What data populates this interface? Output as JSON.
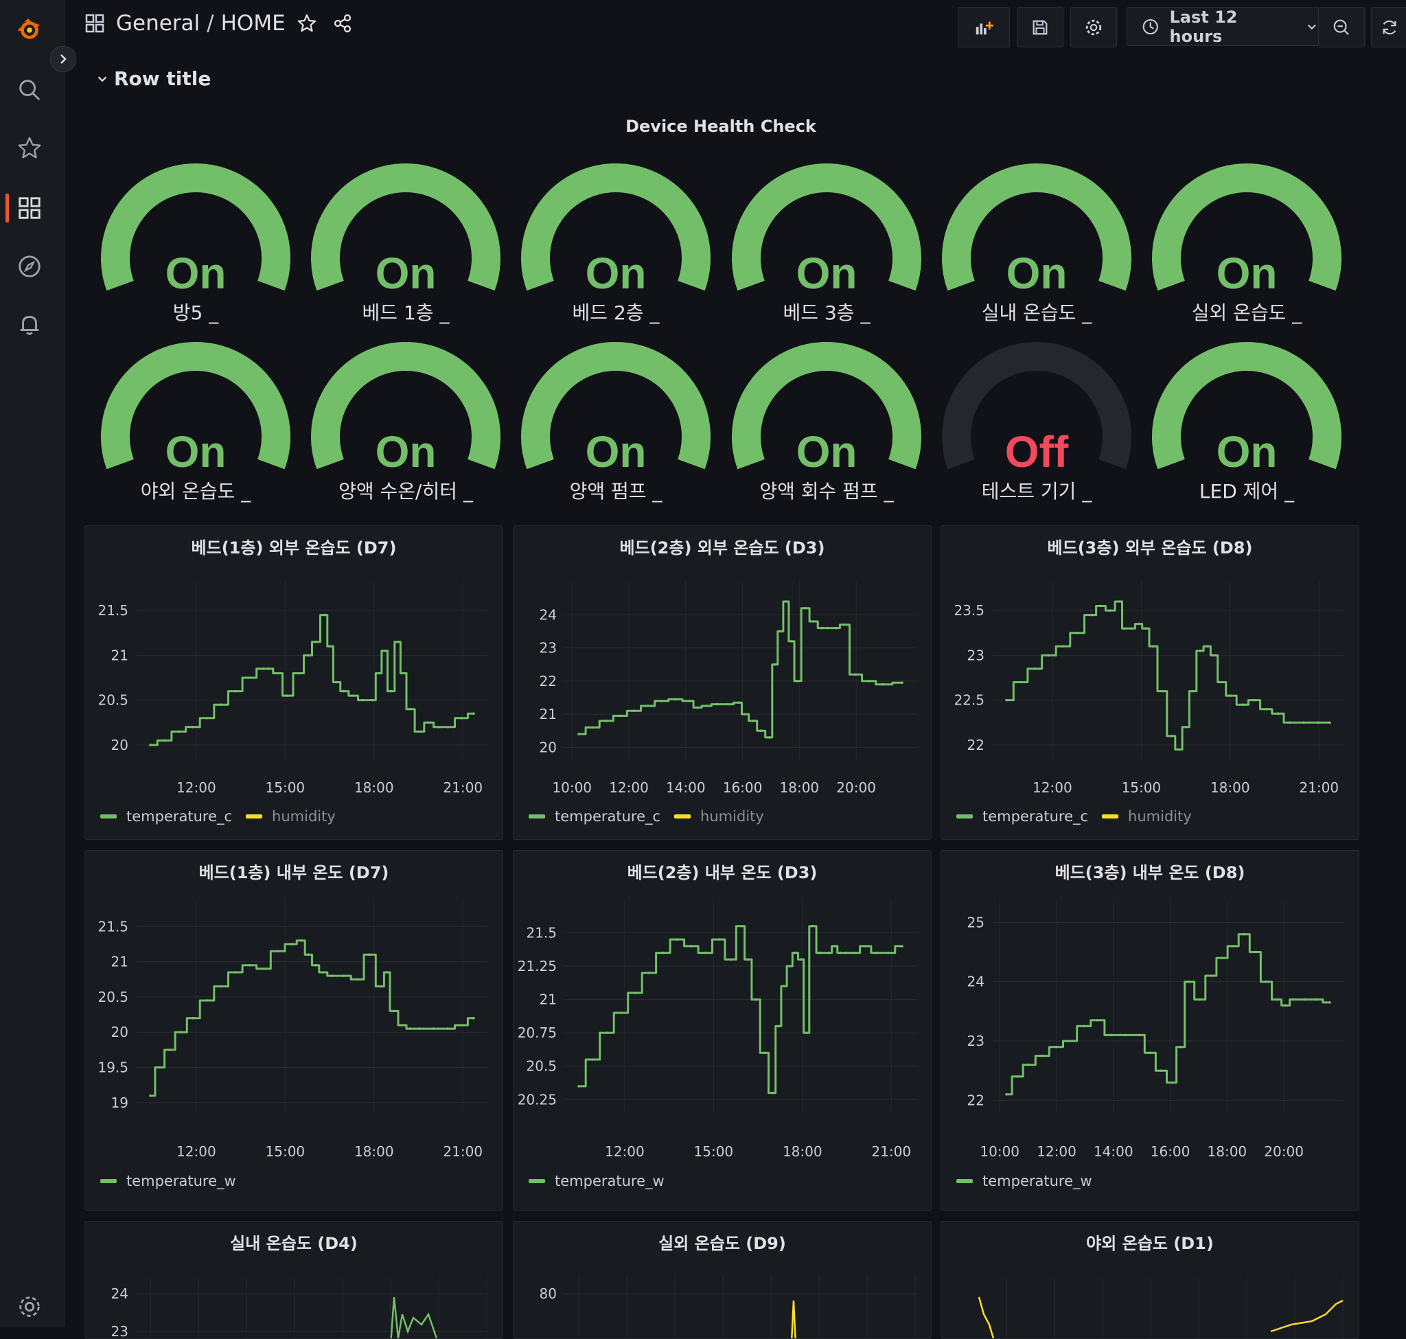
{
  "breadcrumb": {
    "folder": "General",
    "dashboard": "HOME"
  },
  "toolbar": {
    "time_range": "Last 12 hours"
  },
  "icons": [
    "grafana-logo-icon",
    "search-icon",
    "star-icon",
    "dashboards-icon",
    "explore-icon",
    "alerting-icon",
    "settings-icon",
    "chevron-right-icon",
    "dashboard-grid-icon",
    "star-outline-icon",
    "share-icon",
    "add-panel-icon",
    "save-icon",
    "gear-icon",
    "clock-icon",
    "chevron-down-icon",
    "zoom-out-icon",
    "refresh-icon"
  ],
  "row": {
    "title": "Row title"
  },
  "health": {
    "title": "Device Health Check",
    "devices": [
      {
        "label": "방5 _",
        "value": "On"
      },
      {
        "label": "베드 1층 _",
        "value": "On"
      },
      {
        "label": "베드 2층 _",
        "value": "On"
      },
      {
        "label": "베드 3층 _",
        "value": "On"
      },
      {
        "label": "실내 온습도 _",
        "value": "On"
      },
      {
        "label": "실외 온습도 _",
        "value": "On"
      },
      {
        "label": "야외 온습도 _",
        "value": "On"
      },
      {
        "label": "양액 수온/히터 _",
        "value": "On"
      },
      {
        "label": "양액 펌프 _",
        "value": "On"
      },
      {
        "label": "양액 회수 펌프 _",
        "value": "On"
      },
      {
        "label": "테스트 기기 _",
        "value": "Off"
      },
      {
        "label": "LED 제어 _",
        "value": "On"
      }
    ]
  },
  "colors": {
    "on": "#73bf69",
    "off": "#f2495c",
    "track": "#25272c",
    "humidity": "#fade2a",
    "bg": "#111217",
    "panel": "#181b1f"
  },
  "chart_data": [
    {
      "type": "line",
      "title": "베드(1층) 외부 온습도 (D7)",
      "yticks": [
        "21.5",
        "21",
        "20.5",
        "20"
      ],
      "ylim": [
        19.9,
        21.6
      ],
      "xticks": [
        "12:00",
        "15:00",
        "18:00",
        "21:00"
      ],
      "legend": [
        "temperature_c",
        "humidity"
      ],
      "x": [
        0,
        0.6,
        1.2,
        1.8,
        2.4,
        3,
        3.6,
        4.2,
        4.8,
        5,
        5.4,
        5.8,
        6.3,
        6.7,
        7,
        7.4,
        7.6,
        7.9,
        8.2,
        8.6,
        9,
        9.4,
        9.7,
        9.9,
        10.2,
        10.5,
        10.7,
        11,
        11.4,
        11.8,
        12.2,
        12.6,
        13.2,
        13.7
      ],
      "y": [
        20.0,
        20.05,
        20.15,
        20.2,
        20.3,
        20.45,
        20.6,
        20.75,
        20.85,
        20.85,
        20.8,
        20.55,
        20.8,
        21.0,
        21.15,
        21.45,
        21.1,
        20.7,
        20.6,
        20.55,
        20.5,
        20.5,
        20.8,
        21.05,
        20.6,
        21.15,
        20.8,
        20.4,
        20.15,
        20.25,
        20.2,
        20.2,
        20.3,
        20.35
      ]
    },
    {
      "type": "line",
      "title": "베드(2층) 외부 온습도 (D3)",
      "yticks": [
        "24",
        "23",
        "22",
        "21",
        "20"
      ],
      "ylim": [
        19.8,
        24.4
      ],
      "xticks": [
        "10:00",
        "12:00",
        "14:00",
        "16:00",
        "18:00",
        "20:00"
      ],
      "legend": [
        "temperature_c",
        "humidity"
      ],
      "x": [
        0,
        0.5,
        1,
        1.5,
        2,
        2.5,
        3,
        3.5,
        4,
        4.3,
        4.6,
        5,
        5.4,
        5.8,
        6,
        6.3,
        6.6,
        6.9,
        7.1,
        7.3,
        7.5,
        7.7,
        7.9,
        8.2,
        8.5,
        8.8,
        9,
        9.3,
        9.6,
        10,
        10.5,
        11,
        11.7
      ],
      "y": [
        20.4,
        20.6,
        20.8,
        20.95,
        21.1,
        21.25,
        21.4,
        21.45,
        21.4,
        21.2,
        21.25,
        21.3,
        21.3,
        21.35,
        21.0,
        20.8,
        20.5,
        20.3,
        22.5,
        23.5,
        24.4,
        23.2,
        22.0,
        24.2,
        23.8,
        23.6,
        23.6,
        23.6,
        23.7,
        22.2,
        22.0,
        21.9,
        21.95
      ]
    },
    {
      "type": "line",
      "title": "베드(3층) 외부 온습도 (D8)",
      "yticks": [
        "23.5",
        "23",
        "22.5",
        "22"
      ],
      "ylim": [
        21.9,
        23.6
      ],
      "xticks": [
        "12:00",
        "15:00",
        "18:00",
        "21:00"
      ],
      "legend": [
        "temperature_c",
        "humidity"
      ],
      "x": [
        0,
        0.6,
        1.2,
        1.8,
        2.4,
        3,
        3.6,
        4,
        4.4,
        4.8,
        5,
        5.3,
        5.6,
        5.9,
        6.2,
        6.6,
        7,
        7.3,
        7.6,
        7.9,
        8.2,
        8.5,
        8.8,
        9.1,
        9.5,
        10,
        10.5,
        11,
        11.5,
        12,
        12.6,
        13.2,
        13.7
      ],
      "y": [
        22.5,
        22.7,
        22.85,
        23.0,
        23.1,
        23.25,
        23.45,
        23.55,
        23.5,
        23.6,
        23.3,
        23.3,
        23.35,
        23.3,
        23.1,
        22.6,
        22.1,
        21.95,
        22.2,
        22.6,
        23.05,
        23.1,
        23.0,
        22.7,
        22.55,
        22.45,
        22.5,
        22.4,
        22.35,
        22.25,
        22.25,
        22.25,
        22.25
      ]
    },
    {
      "type": "line",
      "title": "베드(1층) 내부 온도 (D7)",
      "yticks": [
        "21.5",
        "21",
        "20.5",
        "20",
        "19.5",
        "19"
      ],
      "ylim": [
        18.95,
        21.6
      ],
      "xticks": [
        "12:00",
        "15:00",
        "18:00",
        "21:00"
      ],
      "legend": [
        "temperature_w"
      ],
      "x": [
        0,
        0.4,
        0.8,
        1.3,
        1.8,
        2.4,
        3,
        3.6,
        4.2,
        4.8,
        5.4,
        6,
        6.4,
        6.7,
        7,
        7.3,
        7.7,
        8.2,
        8.8,
        9.3,
        9.8,
        10,
        10.3,
        10.7,
        11,
        11.4,
        12,
        12.6,
        13.2,
        13.7
      ],
      "y": [
        19.1,
        19.5,
        19.75,
        20.0,
        20.2,
        20.45,
        20.65,
        20.85,
        20.95,
        20.9,
        21.15,
        21.25,
        21.3,
        21.1,
        20.95,
        20.85,
        20.8,
        20.8,
        20.75,
        21.1,
        20.65,
        20.85,
        20.3,
        20.1,
        20.05,
        20.05,
        20.05,
        20.05,
        20.1,
        20.2
      ]
    },
    {
      "type": "line",
      "title": "베드(2층) 내부 온도 (D3)",
      "yticks": [
        "21.5",
        "21.25",
        "21",
        "20.75",
        "20.5",
        "20.25"
      ],
      "ylim": [
        20.2,
        21.6
      ],
      "xticks": [
        "12:00",
        "15:00",
        "18:00",
        "21:00"
      ],
      "legend": [
        "temperature_w"
      ],
      "x": [
        0,
        0.5,
        1,
        1.5,
        2,
        2.5,
        3,
        3.5,
        4,
        4.5,
        5,
        5.4,
        5.8,
        6,
        6.3,
        6.6,
        6.9,
        7.1,
        7.3,
        7.5,
        7.7,
        7.9,
        8.1,
        8.3,
        8.6,
        8.9,
        9.1,
        9.3,
        9.5,
        9.8,
        10.2,
        10.6,
        11,
        11.5
      ],
      "y": [
        20.35,
        20.55,
        20.75,
        20.9,
        21.05,
        21.2,
        21.35,
        21.45,
        21.4,
        21.35,
        21.45,
        21.3,
        21.55,
        21.3,
        21.0,
        20.6,
        20.3,
        20.8,
        21.1,
        21.25,
        21.35,
        21.3,
        20.75,
        21.55,
        21.35,
        21.35,
        21.4,
        21.35,
        21.35,
        21.35,
        21.4,
        21.35,
        21.35,
        21.4
      ]
    },
    {
      "type": "line",
      "title": "베드(3층) 내부 온도 (D8)",
      "yticks": [
        "25",
        "24",
        "23",
        "22"
      ],
      "ylim": [
        21.9,
        25.05
      ],
      "xticks": [
        "10:00",
        "12:00",
        "14:00",
        "16:00",
        "18:00",
        "20:00"
      ],
      "legend": [
        "temperature_w"
      ],
      "x": [
        0,
        0.4,
        0.8,
        1.3,
        1.8,
        2.3,
        2.8,
        3.3,
        3.8,
        4.3,
        4.8,
        5.2,
        5.6,
        6.0,
        6.3,
        6.6,
        7,
        7.4,
        7.8,
        8.2,
        8.6,
        9,
        9.4,
        9.8,
        10.1,
        10.4,
        10.8,
        11.2,
        11.7
      ],
      "y": [
        22.1,
        22.4,
        22.6,
        22.75,
        22.9,
        23.0,
        23.25,
        23.35,
        23.1,
        23.1,
        23.1,
        22.8,
        22.5,
        22.3,
        22.9,
        24.0,
        23.7,
        24.1,
        24.4,
        24.6,
        24.8,
        24.5,
        24.0,
        23.7,
        23.6,
        23.7,
        23.7,
        23.7,
        23.65
      ]
    },
    {
      "type": "line",
      "title": "실내 온습도 (D4)",
      "yticks": [
        "24",
        "23"
      ],
      "xticks": [],
      "legend": []
    },
    {
      "type": "line",
      "title": "실외 온습도 (D9)",
      "yticks": [
        "80"
      ],
      "xticks": [],
      "legend": []
    },
    {
      "type": "line",
      "title": "야외 온습도 (D1)",
      "yticks": [],
      "xticks": [],
      "legend": []
    }
  ]
}
